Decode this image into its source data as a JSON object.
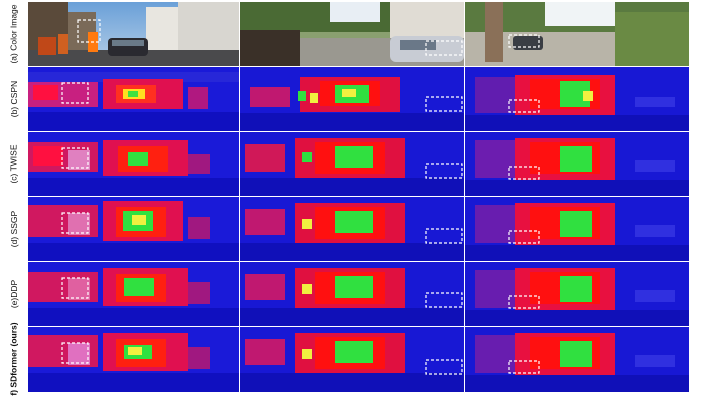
{
  "row_labels": [
    "(a) Color Image",
    "(b) CSPN",
    "(c) TWISE",
    "(d) SSGP",
    "(e)DDP",
    "f) SDformer (ours)"
  ],
  "columns": 3,
  "colors": {
    "depth_far": "#1a1ad8",
    "depth_mid": "#e01050",
    "depth_near": "#ff0000",
    "depth_close": "#22e030",
    "depth_closest": "#f0f040",
    "highlight_box": "#ffffff"
  }
}
